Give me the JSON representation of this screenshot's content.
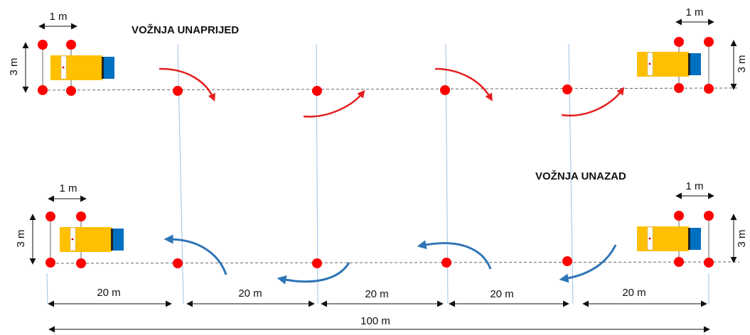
{
  "labels": {
    "forward_title": "VOŽNJA UNAPRIJED",
    "reverse_title": "VOŽNJA UNAZAD",
    "one_m": "1 m",
    "three_m": "3 m",
    "twenty_m": "20 m",
    "hundred_m": "100 m"
  },
  "colors": {
    "cone": "#ff0000",
    "truck_body": "#ffc000",
    "truck_cab": "#0070c0",
    "forward_arrow": "#e32020",
    "reverse_arrow": "#2e75b6",
    "guide_line": "#9dc3e6",
    "center_line": "#666666"
  }
}
